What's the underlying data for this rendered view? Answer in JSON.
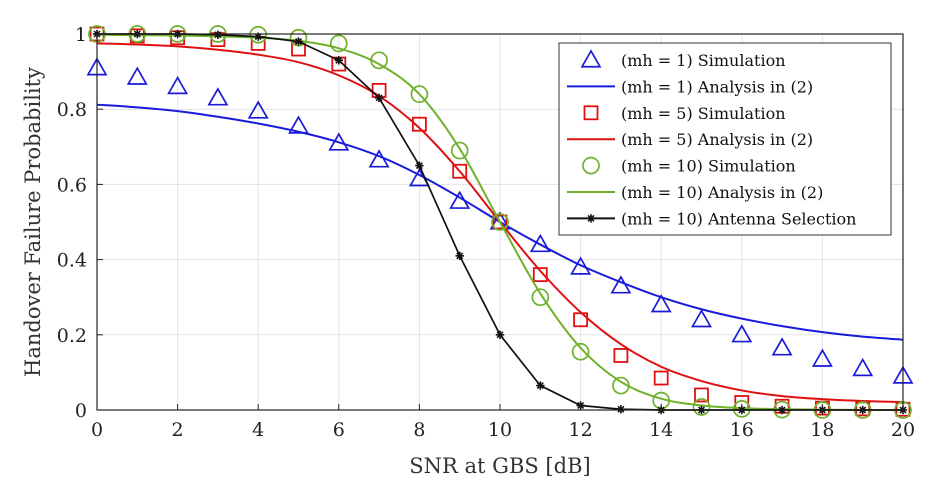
{
  "chart_data": {
    "type": "line",
    "xlabel": "SNR at GBS [dB]",
    "ylabel": "Handover Failure Probability",
    "xlim": [
      0,
      20
    ],
    "ylim": [
      0,
      1
    ],
    "grid": true,
    "legend_position": "top-right",
    "xticks": [
      0,
      2,
      4,
      6,
      8,
      10,
      12,
      14,
      16,
      18,
      20
    ],
    "xtick_labels": [
      "0",
      "2",
      "4",
      "6",
      "8",
      "10",
      "12",
      "14",
      "16",
      "18",
      "20"
    ],
    "yticks": [
      0,
      0.2,
      0.4,
      0.6,
      0.8,
      1
    ],
    "ytick_labels": [
      "0",
      "0.2",
      "0.4",
      "0.6",
      "0.8",
      "1"
    ],
    "series": [
      {
        "name": "(m_h = 1) Simulation",
        "legend_label": "(mh = 1) Simulation",
        "kind": "markers",
        "marker": "triangle",
        "color": "#1a1adb",
        "x": [
          0,
          1,
          2,
          3,
          4,
          5,
          6,
          7,
          8,
          9,
          10,
          11,
          12,
          13,
          14,
          15,
          16,
          17,
          18,
          19,
          20
        ],
        "y": [
          0.91,
          0.885,
          0.86,
          0.83,
          0.795,
          0.755,
          0.71,
          0.665,
          0.615,
          0.555,
          0.5,
          0.44,
          0.38,
          0.33,
          0.28,
          0.24,
          0.2,
          0.165,
          0.135,
          0.11,
          0.09
        ]
      },
      {
        "name": "(m_h = 1) Analysis in (2)",
        "legend_label": "(mh = 1) Analysis in (2)",
        "kind": "line",
        "color": "#1a1adb",
        "x": [
          0,
          1,
          2,
          3,
          4,
          5,
          6,
          7,
          8,
          9,
          10,
          11,
          12,
          13,
          14,
          15,
          16,
          17,
          18,
          19,
          20
        ],
        "y": [
          0.812,
          0.805,
          0.795,
          0.78,
          0.762,
          0.74,
          0.712,
          0.675,
          0.625,
          0.565,
          0.5,
          0.44,
          0.385,
          0.34,
          0.3,
          0.268,
          0.243,
          0.223,
          0.207,
          0.195,
          0.187
        ]
      },
      {
        "name": "(m_h = 5) Simulation",
        "legend_label": "(mh = 5) Simulation",
        "kind": "markers",
        "marker": "square",
        "color": "#e01010",
        "x": [
          0,
          1,
          2,
          3,
          4,
          5,
          6,
          7,
          8,
          9,
          10,
          11,
          12,
          13,
          14,
          15,
          16,
          17,
          18,
          19,
          20
        ],
        "y": [
          1.0,
          0.995,
          0.99,
          0.985,
          0.975,
          0.96,
          0.92,
          0.85,
          0.76,
          0.635,
          0.5,
          0.36,
          0.24,
          0.145,
          0.085,
          0.04,
          0.02,
          0.01,
          0.005,
          0.003,
          0.002
        ]
      },
      {
        "name": "(m_h = 5) Analysis in (2)",
        "legend_label": "(mh = 5) Analysis in (2)",
        "kind": "line",
        "color": "#e01010",
        "x": [
          0,
          1,
          2,
          3,
          4,
          5,
          6,
          7,
          8,
          9,
          10,
          11,
          12,
          13,
          14,
          15,
          16,
          17,
          18,
          19,
          20
        ],
        "y": [
          0.975,
          0.972,
          0.967,
          0.958,
          0.945,
          0.925,
          0.89,
          0.835,
          0.75,
          0.635,
          0.5,
          0.37,
          0.26,
          0.175,
          0.115,
          0.077,
          0.052,
          0.037,
          0.029,
          0.024,
          0.021
        ]
      },
      {
        "name": "(m_h = 10) Simulation",
        "legend_label": "(mh = 10) Simulation",
        "kind": "markers",
        "marker": "circle",
        "color": "#6fb12b",
        "x": [
          0,
          1,
          2,
          3,
          4,
          5,
          6,
          7,
          8,
          9,
          10,
          11,
          12,
          13,
          14,
          15,
          16,
          17,
          18,
          19,
          20
        ],
        "y": [
          1.0,
          1.0,
          1.0,
          1.0,
          0.998,
          0.99,
          0.975,
          0.93,
          0.84,
          0.69,
          0.5,
          0.3,
          0.155,
          0.065,
          0.025,
          0.008,
          0.003,
          0.001,
          0.0,
          0.0,
          0.0
        ]
      },
      {
        "name": "(m_h = 10) Analysis in (2)",
        "legend_label": "(mh = 10) Analysis in (2)",
        "kind": "line",
        "color": "#6fb12b",
        "x": [
          0,
          1,
          2,
          3,
          4,
          5,
          6,
          7,
          8,
          9,
          10,
          11,
          12,
          13,
          14,
          15,
          16,
          17,
          18,
          19,
          20
        ],
        "y": [
          0.998,
          0.997,
          0.996,
          0.994,
          0.99,
          0.982,
          0.962,
          0.92,
          0.84,
          0.695,
          0.5,
          0.31,
          0.165,
          0.075,
          0.03,
          0.012,
          0.005,
          0.002,
          0.001,
          0.0,
          0.0
        ]
      },
      {
        "name": "(m_h = 10) Antenna Selection",
        "legend_label": "(mh = 10) Antenna Selection",
        "kind": "line+markers",
        "marker": "asterisk",
        "color": "#111111",
        "x": [
          0,
          1,
          2,
          3,
          4,
          5,
          6,
          7,
          8,
          9,
          10,
          11,
          12,
          13,
          14,
          15,
          16,
          17,
          18,
          19,
          20
        ],
        "y": [
          1.0,
          1.0,
          1.0,
          0.998,
          0.993,
          0.98,
          0.93,
          0.83,
          0.65,
          0.41,
          0.2,
          0.065,
          0.012,
          0.002,
          0.0,
          0.0,
          0.0,
          0.0,
          0.0,
          0.0,
          0.0
        ]
      }
    ]
  }
}
